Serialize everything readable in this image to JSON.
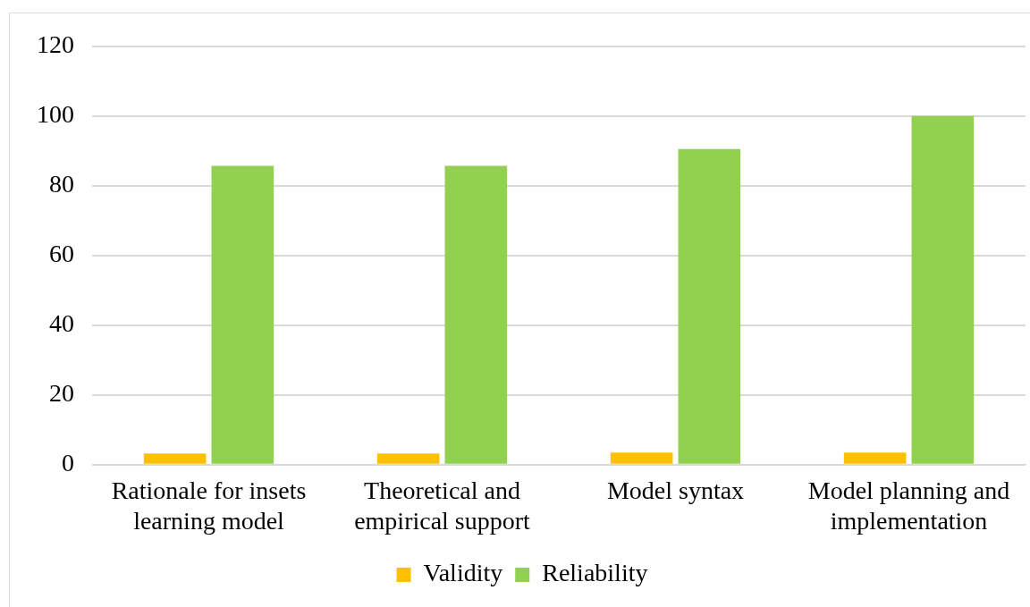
{
  "chart_data": {
    "type": "bar",
    "categories": [
      "Rationale for insets learning model",
      "Theoretical and empirical support",
      "Model syntax",
      "Model planning and implementation"
    ],
    "series": [
      {
        "name": "Validity",
        "color": "#ffc000",
        "values": [
          3.2,
          3.2,
          3.5,
          3.5
        ]
      },
      {
        "name": "Reliability",
        "color": "#92d050",
        "values": [
          85.7,
          85.7,
          90.5,
          100
        ]
      }
    ],
    "ylim": [
      0,
      120
    ],
    "yticks": [
      0,
      20,
      40,
      60,
      80,
      100,
      120
    ],
    "grid": "y",
    "legend": "bottom"
  }
}
